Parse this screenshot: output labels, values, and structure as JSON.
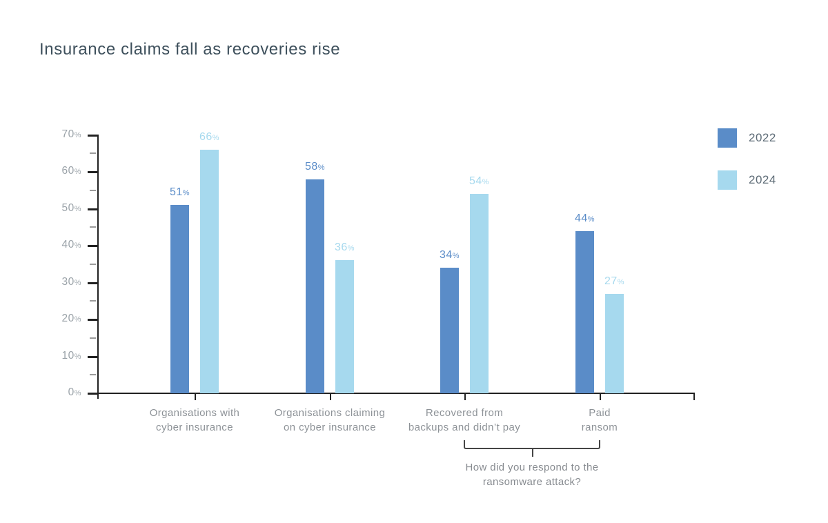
{
  "chart_data": {
    "type": "bar",
    "title": "Insurance claims fall as recoveries rise",
    "categories": [
      [
        "Organisations with",
        "cyber insurance"
      ],
      [
        "Organisations claiming",
        "on cyber insurance"
      ],
      [
        "Recovered from",
        "backups and didn’t pay"
      ],
      [
        "Paid",
        "ransom"
      ]
    ],
    "series": [
      {
        "name": "2022",
        "color": "#5a8cc8",
        "values": [
          51,
          58,
          34,
          44
        ]
      },
      {
        "name": "2024",
        "color": "#a6d9ee",
        "values": [
          66,
          36,
          54,
          27
        ]
      }
    ],
    "xlabel": "",
    "ylabel": "",
    "ylim": [
      0,
      70
    ],
    "y_major_step": 10,
    "y_minor_step": 5,
    "y_tick_suffix": "%",
    "value_suffix": "%",
    "grid": false,
    "legend_position": "top-right",
    "annotation": {
      "span_categories": [
        2,
        3
      ],
      "lines": [
        "How did you respond to the",
        "ransomware attack?"
      ]
    }
  },
  "colors": {
    "background": "#ffffff",
    "title_text": "#3e505c",
    "axis": "#212121",
    "minor_tick": "#9b9b9b",
    "y_label_text": "#9aa2a8",
    "category_text": "#8d9297",
    "annotation_text": "#878b90",
    "bracket": "#454545",
    "legend_text": "#5d6b76",
    "series_2022": "#5a8cc8",
    "series_2024": "#a6d9ee"
  }
}
